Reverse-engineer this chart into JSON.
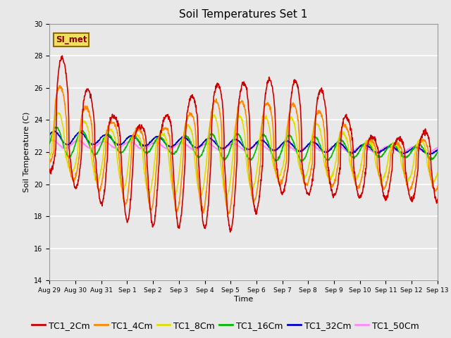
{
  "title": "Soil Temperatures Set 1",
  "xlabel": "Time",
  "ylabel": "Soil Temperature (C)",
  "ylim": [
    14,
    30
  ],
  "plot_bg_color": "#e8e8e8",
  "annotation_text": "SI_met",
  "annotation_bg": "#f0e060",
  "annotation_border": "#8b6914",
  "series": {
    "TC1_2Cm": {
      "color": "#cc0000",
      "linewidth": 1.2
    },
    "TC1_4Cm": {
      "color": "#ff8800",
      "linewidth": 1.2
    },
    "TC1_8Cm": {
      "color": "#dddd00",
      "linewidth": 1.2
    },
    "TC1_16Cm": {
      "color": "#00bb00",
      "linewidth": 1.2
    },
    "TC1_32Cm": {
      "color": "#0000cc",
      "linewidth": 1.2
    },
    "TC1_50Cm": {
      "color": "#ff88ff",
      "linewidth": 1.2
    }
  },
  "tick_labels": [
    "Aug 29",
    "Aug 30",
    "Aug 31",
    "Sep 1",
    "Sep 2",
    "Sep 3",
    "Sep 4",
    "Sep 5",
    "Sep 6",
    "Sep 7",
    "Sep 8",
    "Sep 9",
    "Sep 10",
    "Sep 11",
    "Sep 12",
    "Sep 13"
  ],
  "num_days": 16,
  "points_per_day": 96,
  "legend_fontsize": 9,
  "title_fontsize": 11,
  "yticks": [
    14,
    16,
    18,
    20,
    22,
    24,
    26,
    28,
    30
  ]
}
